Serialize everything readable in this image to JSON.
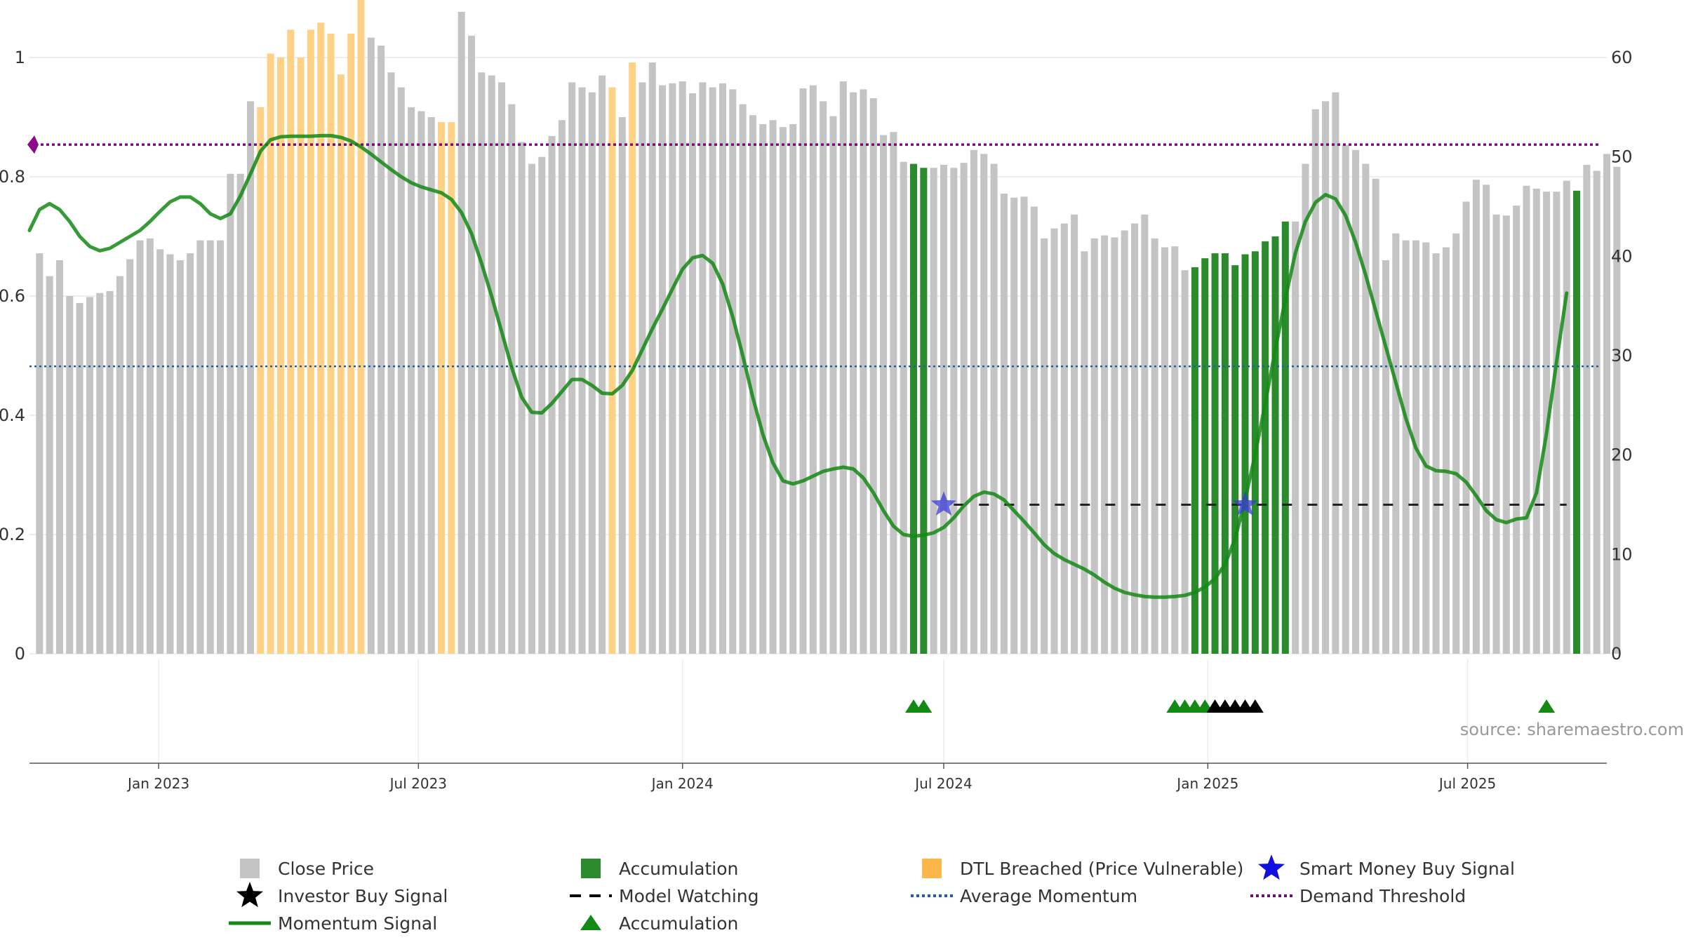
{
  "chart_data": {
    "type": "bar",
    "title": "",
    "source_note": "source: sharemaestro.com",
    "y_left": {
      "ticks": [
        "0",
        "0.2",
        "0.4",
        "0.6",
        "0.8",
        "1"
      ],
      "range": [
        0,
        1
      ]
    },
    "y_right": {
      "ticks": [
        "0",
        "10",
        "20",
        "30",
        "40",
        "50",
        "60"
      ],
      "range": [
        0,
        60
      ]
    },
    "x_range": [
      "2022-10-03",
      "2025-10-06"
    ],
    "x_ticks": [
      {
        "label": "Jan 2023",
        "date": "2023-01-01"
      },
      {
        "label": "Jul 2023",
        "date": "2023-07-01"
      },
      {
        "label": "Jan 2024",
        "date": "2024-01-01"
      },
      {
        "label": "Jul 2024",
        "date": "2024-07-01"
      },
      {
        "label": "Jan 2025",
        "date": "2025-01-01"
      },
      {
        "label": "Jul 2025",
        "date": "2025-07-01"
      }
    ],
    "bars": {
      "start_date": "2022-10-10",
      "interval_days": 7,
      "unit": "right-axis",
      "values": [
        40.3,
        38.0,
        39.6,
        36.0,
        35.3,
        35.9,
        36.3,
        36.5,
        38.0,
        39.7,
        41.6,
        41.8,
        40.7,
        40.2,
        39.6,
        40.3,
        41.6,
        41.6,
        41.6,
        48.3,
        48.3,
        55.6,
        55.0,
        60.4,
        60.0,
        62.8,
        60.0,
        62.8,
        63.5,
        62.4,
        58.3,
        62.4,
        66.0,
        62.0,
        61.2,
        58.5,
        57.0,
        55.0,
        54.6,
        54.0,
        53.5,
        53.5,
        64.6,
        62.2,
        58.5,
        58.2,
        57.5,
        55.3,
        51.5,
        49.3,
        50.0,
        52.1,
        53.7,
        57.5,
        57.0,
        56.5,
        58.2,
        57.0,
        54.0,
        59.5,
        57.5,
        59.5,
        57.2,
        57.4,
        57.6,
        56.4,
        57.5,
        57.0,
        57.4,
        56.8,
        55.3,
        54.2,
        53.3,
        53.7,
        53.0,
        53.3,
        56.9,
        57.2,
        55.6,
        54.1,
        57.6,
        56.5,
        56.8,
        55.9,
        52.2,
        52.5,
        49.5,
        49.3,
        48.9,
        48.9,
        49.2,
        48.9,
        49.4,
        50.7,
        50.3,
        49.3,
        46.3,
        45.9,
        46.0,
        45.0,
        41.8,
        42.8,
        43.3,
        44.2,
        40.5,
        41.8,
        42.1,
        41.9,
        42.6,
        43.3,
        44.2,
        41.8,
        40.9,
        41.0,
        38.6,
        38.9,
        39.8,
        40.3,
        40.3,
        39.1,
        40.2,
        40.5,
        41.5,
        42.0,
        43.5,
        43.5,
        49.3,
        54.8,
        55.6,
        56.5,
        51.2,
        50.7,
        49.3,
        47.8,
        39.6,
        42.3,
        41.6,
        41.6,
        41.4,
        40.3,
        40.9,
        42.3,
        45.5,
        47.7,
        47.2,
        44.2,
        44.1,
        45.1,
        47.1,
        46.8,
        46.5,
        46.5,
        47.6,
        46.6,
        49.2,
        48.6,
        50.3,
        49.0
      ],
      "colors_by_index": {
        "default": "#c4c4c4",
        "accumulation": "#2b8a2b",
        "dtl_breached": "#fdd286"
      },
      "accumulation_indices": [
        87,
        88,
        115,
        116,
        117,
        118,
        119,
        120,
        121,
        122,
        123,
        124,
        153
      ],
      "dtl_breached_indices": [
        22,
        23,
        24,
        25,
        26,
        27,
        28,
        29,
        30,
        31,
        32,
        40,
        41,
        57,
        59
      ]
    },
    "series": [
      {
        "name": "Momentum Signal",
        "color": "#138a13",
        "unit": "left-axis",
        "points": [
          [
            "2022-10-03",
            0.71
          ],
          [
            "2022-10-10",
            0.745
          ],
          [
            "2022-10-17",
            0.755
          ],
          [
            "2022-10-24",
            0.745
          ],
          [
            "2022-10-31",
            0.725
          ],
          [
            "2022-11-07",
            0.7
          ],
          [
            "2022-11-14",
            0.683
          ],
          [
            "2022-11-21",
            0.676
          ],
          [
            "2022-11-28",
            0.68
          ],
          [
            "2022-12-05",
            0.69
          ],
          [
            "2022-12-12",
            0.7
          ],
          [
            "2022-12-19",
            0.71
          ],
          [
            "2022-12-26",
            0.725
          ],
          [
            "2023-01-02",
            0.742
          ],
          [
            "2023-01-09",
            0.758
          ],
          [
            "2023-01-16",
            0.766
          ],
          [
            "2023-01-23",
            0.766
          ],
          [
            "2023-01-30",
            0.755
          ],
          [
            "2023-02-06",
            0.738
          ],
          [
            "2023-02-13",
            0.73
          ],
          [
            "2023-02-20",
            0.738
          ],
          [
            "2023-02-27",
            0.768
          ],
          [
            "2023-03-06",
            0.805
          ],
          [
            "2023-03-13",
            0.843
          ],
          [
            "2023-03-20",
            0.862
          ],
          [
            "2023-03-27",
            0.867
          ],
          [
            "2023-04-03",
            0.868
          ],
          [
            "2023-04-10",
            0.868
          ],
          [
            "2023-04-17",
            0.868
          ],
          [
            "2023-04-24",
            0.869
          ],
          [
            "2023-05-01",
            0.869
          ],
          [
            "2023-05-08",
            0.866
          ],
          [
            "2023-05-15",
            0.86
          ],
          [
            "2023-05-22",
            0.85
          ],
          [
            "2023-05-29",
            0.838
          ],
          [
            "2023-06-05",
            0.825
          ],
          [
            "2023-06-12",
            0.812
          ],
          [
            "2023-06-19",
            0.8
          ],
          [
            "2023-06-26",
            0.79
          ],
          [
            "2023-07-03",
            0.783
          ],
          [
            "2023-07-10",
            0.778
          ],
          [
            "2023-07-17",
            0.773
          ],
          [
            "2023-07-24",
            0.762
          ],
          [
            "2023-07-31",
            0.74
          ],
          [
            "2023-08-07",
            0.705
          ],
          [
            "2023-08-14",
            0.655
          ],
          [
            "2023-08-21",
            0.6
          ],
          [
            "2023-08-28",
            0.54
          ],
          [
            "2023-09-04",
            0.48
          ],
          [
            "2023-09-11",
            0.43
          ],
          [
            "2023-09-18",
            0.405
          ],
          [
            "2023-09-25",
            0.404
          ],
          [
            "2023-10-02",
            0.42
          ],
          [
            "2023-10-09",
            0.44
          ],
          [
            "2023-10-16",
            0.46
          ],
          [
            "2023-10-23",
            0.46
          ],
          [
            "2023-10-30",
            0.45
          ],
          [
            "2023-11-06",
            0.437
          ],
          [
            "2023-11-13",
            0.436
          ],
          [
            "2023-11-20",
            0.45
          ],
          [
            "2023-11-27",
            0.475
          ],
          [
            "2023-12-04",
            0.51
          ],
          [
            "2023-12-11",
            0.545
          ],
          [
            "2023-12-18",
            0.578
          ],
          [
            "2023-12-25",
            0.612
          ],
          [
            "2024-01-01",
            0.645
          ],
          [
            "2024-01-08",
            0.664
          ],
          [
            "2024-01-15",
            0.668
          ],
          [
            "2024-01-22",
            0.655
          ],
          [
            "2024-01-29",
            0.62
          ],
          [
            "2024-02-05",
            0.565
          ],
          [
            "2024-02-12",
            0.5
          ],
          [
            "2024-02-19",
            0.43
          ],
          [
            "2024-02-26",
            0.368
          ],
          [
            "2024-03-04",
            0.32
          ],
          [
            "2024-03-11",
            0.29
          ],
          [
            "2024-03-18",
            0.285
          ],
          [
            "2024-03-25",
            0.29
          ],
          [
            "2024-04-01",
            0.298
          ],
          [
            "2024-04-08",
            0.306
          ],
          [
            "2024-04-15",
            0.31
          ],
          [
            "2024-04-22",
            0.313
          ],
          [
            "2024-04-29",
            0.31
          ],
          [
            "2024-05-06",
            0.295
          ],
          [
            "2024-05-13",
            0.27
          ],
          [
            "2024-05-20",
            0.24
          ],
          [
            "2024-05-27",
            0.214
          ],
          [
            "2024-06-03",
            0.2
          ],
          [
            "2024-06-10",
            0.197
          ],
          [
            "2024-06-17",
            0.199
          ],
          [
            "2024-06-24",
            0.203
          ],
          [
            "2024-07-01",
            0.212
          ],
          [
            "2024-07-08",
            0.228
          ],
          [
            "2024-07-15",
            0.248
          ],
          [
            "2024-07-22",
            0.264
          ],
          [
            "2024-07-29",
            0.271
          ],
          [
            "2024-08-05",
            0.268
          ],
          [
            "2024-08-12",
            0.258
          ],
          [
            "2024-08-19",
            0.24
          ],
          [
            "2024-08-26",
            0.222
          ],
          [
            "2024-09-02",
            0.203
          ],
          [
            "2024-09-09",
            0.183
          ],
          [
            "2024-09-16",
            0.168
          ],
          [
            "2024-09-23",
            0.158
          ],
          [
            "2024-09-30",
            0.15
          ],
          [
            "2024-10-07",
            0.142
          ],
          [
            "2024-10-14",
            0.132
          ],
          [
            "2024-10-21",
            0.12
          ],
          [
            "2024-10-28",
            0.11
          ],
          [
            "2024-11-04",
            0.103
          ],
          [
            "2024-11-11",
            0.099
          ],
          [
            "2024-11-18",
            0.096
          ],
          [
            "2024-11-25",
            0.095
          ],
          [
            "2024-12-02",
            0.095
          ],
          [
            "2024-12-09",
            0.096
          ],
          [
            "2024-12-16",
            0.098
          ],
          [
            "2024-12-23",
            0.103
          ],
          [
            "2024-12-30",
            0.112
          ],
          [
            "2025-01-06",
            0.126
          ],
          [
            "2025-01-13",
            0.15
          ],
          [
            "2025-01-20",
            0.193
          ],
          [
            "2025-01-27",
            0.258
          ],
          [
            "2025-02-03",
            0.335
          ],
          [
            "2025-02-10",
            0.42
          ],
          [
            "2025-02-17",
            0.51
          ],
          [
            "2025-02-24",
            0.595
          ],
          [
            "2025-03-03",
            0.672
          ],
          [
            "2025-03-10",
            0.725
          ],
          [
            "2025-03-17",
            0.757
          ],
          [
            "2025-03-24",
            0.77
          ],
          [
            "2025-03-31",
            0.763
          ],
          [
            "2025-04-07",
            0.735
          ],
          [
            "2025-04-14",
            0.69
          ],
          [
            "2025-04-21",
            0.635
          ],
          [
            "2025-04-28",
            0.575
          ],
          [
            "2025-05-05",
            0.515
          ],
          [
            "2025-05-12",
            0.455
          ],
          [
            "2025-05-19",
            0.395
          ],
          [
            "2025-05-26",
            0.345
          ],
          [
            "2025-06-02",
            0.315
          ],
          [
            "2025-06-09",
            0.307
          ],
          [
            "2025-06-16",
            0.306
          ],
          [
            "2025-06-23",
            0.302
          ],
          [
            "2025-06-30",
            0.288
          ],
          [
            "2025-07-07",
            0.265
          ],
          [
            "2025-07-14",
            0.24
          ],
          [
            "2025-07-21",
            0.225
          ],
          [
            "2025-07-28",
            0.22
          ],
          [
            "2025-08-04",
            0.226
          ],
          [
            "2025-08-11",
            0.228
          ],
          [
            "2025-08-18",
            0.27
          ],
          [
            "2025-08-25",
            0.37
          ],
          [
            "2025-09-01",
            0.49
          ],
          [
            "2025-09-08",
            0.605
          ]
        ]
      },
      {
        "name": "Average Momentum",
        "color": "#1f5fa0",
        "unit": "left-axis",
        "value": 0.482
      },
      {
        "name": "Demand Threshold",
        "color": "#7a0a7a",
        "unit": "left-axis",
        "value": 0.854
      },
      {
        "name": "Model Watching",
        "color": "#222222",
        "unit": "left-axis",
        "value": 0.25,
        "from": "2024-07-08",
        "to": "2025-09-08"
      }
    ],
    "markers": {
      "smart_money_buy": [
        {
          "date": "2024-07-01",
          "value": 0.25
        },
        {
          "date": "2025-01-27",
          "value": 0.25
        }
      ],
      "investor_buy": [
        "2025-01-06",
        "2025-01-13",
        "2025-01-20",
        "2025-01-27",
        "2025-02-03"
      ],
      "accumulation_triangles": [
        "2024-06-10",
        "2024-06-17",
        "2024-12-09",
        "2024-12-16",
        "2024-12-23",
        "2024-12-30",
        "2025-08-25"
      ]
    },
    "legend": {
      "placement": "bottom",
      "items": [
        {
          "label": "Close Price",
          "symbol": "square",
          "color": "#c4c4c4"
        },
        {
          "label": "Accumulation",
          "symbol": "square",
          "color": "#2b8a2b"
        },
        {
          "label": "DTL Breached (Price Vulnerable)",
          "symbol": "square",
          "color": "#fdb64a"
        },
        {
          "label": "Smart Money Buy Signal",
          "symbol": "star",
          "color": "#1010e0"
        },
        {
          "label": "Investor Buy Signal",
          "symbol": "star",
          "color": "#000000"
        },
        {
          "label": "Model Watching",
          "symbol": "dash",
          "color": "#000000"
        },
        {
          "label": "Average Momentum",
          "symbol": "dot",
          "color": "#1f5fa0"
        },
        {
          "label": "Demand Threshold",
          "symbol": "dot",
          "color": "#7a0a7a"
        },
        {
          "label": "Momentum Signal",
          "symbol": "line",
          "color": "#138a13"
        },
        {
          "label": "Accumulation",
          "symbol": "triangle",
          "color": "#138a13"
        }
      ]
    }
  }
}
